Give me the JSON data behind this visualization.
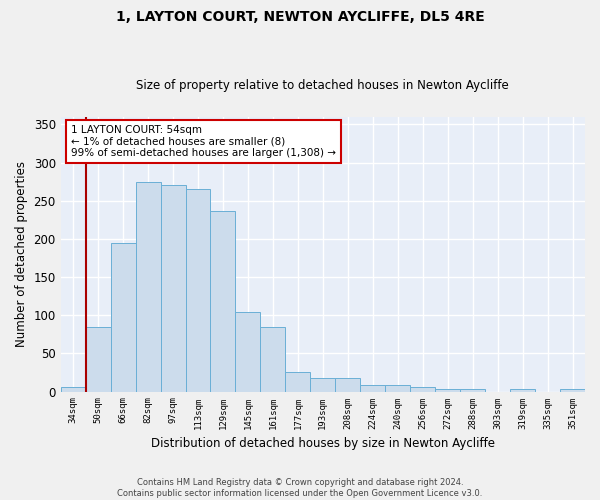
{
  "title": "1, LAYTON COURT, NEWTON AYCLIFFE, DL5 4RE",
  "subtitle": "Size of property relative to detached houses in Newton Aycliffe",
  "xlabel": "Distribution of detached houses by size in Newton Aycliffe",
  "ylabel": "Number of detached properties",
  "categories": [
    "34sqm",
    "50sqm",
    "66sqm",
    "82sqm",
    "97sqm",
    "113sqm",
    "129sqm",
    "145sqm",
    "161sqm",
    "177sqm",
    "193sqm",
    "208sqm",
    "224sqm",
    "240sqm",
    "256sqm",
    "272sqm",
    "288sqm",
    "303sqm",
    "319sqm",
    "335sqm",
    "351sqm"
  ],
  "values": [
    6,
    84,
    195,
    275,
    270,
    265,
    236,
    104,
    84,
    25,
    18,
    18,
    9,
    9,
    6,
    4,
    4,
    0,
    3,
    0,
    3
  ],
  "bar_color": "#ccdcec",
  "bar_edge_color": "#6aafd6",
  "background_color": "#e8eef8",
  "grid_color": "#ffffff",
  "vline_color": "#aa0000",
  "annotation_text": "1 LAYTON COURT: 54sqm\n← 1% of detached houses are smaller (8)\n99% of semi-detached houses are larger (1,308) →",
  "annotation_box_color": "#ffffff",
  "annotation_box_edge_color": "#cc0000",
  "footnote": "Contains HM Land Registry data © Crown copyright and database right 2024.\nContains public sector information licensed under the Open Government Licence v3.0.",
  "ylim": [
    0,
    360
  ],
  "yticks": [
    0,
    50,
    100,
    150,
    200,
    250,
    300,
    350
  ]
}
